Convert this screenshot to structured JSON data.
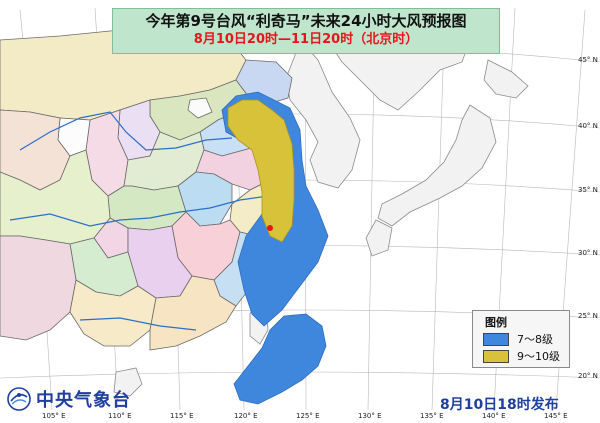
{
  "title": "今年第9号台风“利奇马”未来24小时大风预报图",
  "subtitle": "8月10日20时—11日20时（北京时）",
  "legend": {
    "title": "图例",
    "items": [
      {
        "label": "7～8级",
        "color": "#3f87dd"
      },
      {
        "label": "9～10级",
        "color": "#d8c23a"
      }
    ]
  },
  "organization": "中央气象台",
  "issue_time": "8月10日18时发布",
  "longitude_labels": [
    "105° E",
    "110° E",
    "115° E",
    "120° E",
    "125° E",
    "130° E",
    "135° E",
    "140° E",
    "145° E"
  ],
  "latitude_labels": [
    "45° N",
    "40° N",
    "35° N",
    "30° N",
    "25° N",
    "20° N"
  ],
  "colors": {
    "sea": "#ffffff",
    "japan_korea_land": "#f2f2f2",
    "title_bg": "#bfe6cc",
    "title_text": "#111111",
    "subtitle_text": "#e8141b",
    "footer_text": "#1f3f9e"
  },
  "icons": [
    "cma-logo-icon"
  ]
}
